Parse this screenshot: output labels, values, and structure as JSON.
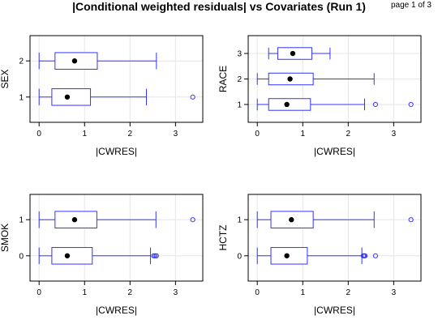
{
  "title": "|Conditional weighted residuals| vs Covariates (Run 1)",
  "page_label": "page 1 of 3",
  "colors": {
    "box": "#3333ff",
    "median_dot": "#000000",
    "grid": "#e6e6e6",
    "frame": "#000000"
  },
  "chart_data": [
    {
      "type": "boxplot",
      "orientation": "horizontal",
      "ylabel": "SEX",
      "xlabel": "|CWRES|",
      "xlim": [
        -0.2,
        3.6
      ],
      "xticks": [
        0,
        1,
        2,
        3
      ],
      "grid": true,
      "groups": [
        {
          "label": "1",
          "whisker_low": 0.0,
          "q1": 0.28,
          "median": 0.62,
          "q3": 1.13,
          "whisker_high": 2.36,
          "outliers": [
            3.38
          ]
        },
        {
          "label": "2",
          "whisker_low": 0.0,
          "q1": 0.35,
          "median": 0.78,
          "q3": 1.28,
          "whisker_high": 2.58,
          "outliers": []
        }
      ]
    },
    {
      "type": "boxplot",
      "orientation": "horizontal",
      "ylabel": "RACE",
      "xlabel": "|CWRES|",
      "xlim": [
        -0.2,
        3.6
      ],
      "xticks": [
        0,
        1,
        2,
        3
      ],
      "grid": true,
      "groups": [
        {
          "label": "1",
          "whisker_low": 0.0,
          "q1": 0.25,
          "median": 0.65,
          "q3": 1.17,
          "whisker_high": 2.36,
          "outliers": [
            2.6,
            3.38
          ]
        },
        {
          "label": "2",
          "whisker_low": 0.0,
          "q1": 0.25,
          "median": 0.72,
          "q3": 1.23,
          "whisker_high": 2.57,
          "outliers": []
        },
        {
          "label": "3",
          "whisker_low": 0.25,
          "q1": 0.45,
          "median": 0.78,
          "q3": 1.2,
          "whisker_high": 1.6,
          "outliers": []
        }
      ]
    },
    {
      "type": "boxplot",
      "orientation": "horizontal",
      "ylabel": "SMOK",
      "xlabel": "|CWRES|",
      "xlim": [
        -0.2,
        3.6
      ],
      "xticks": [
        0,
        1,
        2,
        3
      ],
      "grid": true,
      "groups": [
        {
          "label": "0",
          "whisker_low": 0.0,
          "q1": 0.28,
          "median": 0.62,
          "q3": 1.17,
          "whisker_high": 2.45,
          "outliers": [
            2.52,
            2.55,
            2.58
          ]
        },
        {
          "label": "1",
          "whisker_low": 0.0,
          "q1": 0.35,
          "median": 0.78,
          "q3": 1.27,
          "whisker_high": 2.57,
          "outliers": [
            3.38
          ]
        }
      ]
    },
    {
      "type": "boxplot",
      "orientation": "horizontal",
      "ylabel": "HCTZ",
      "xlabel": "|CWRES|",
      "xlim": [
        -0.2,
        3.6
      ],
      "xticks": [
        0,
        1,
        2,
        3
      ],
      "grid": true,
      "groups": [
        {
          "label": "0",
          "whisker_low": 0.0,
          "q1": 0.3,
          "median": 0.65,
          "q3": 1.1,
          "whisker_high": 2.3,
          "outliers": [
            2.33,
            2.35,
            2.37,
            2.6
          ]
        },
        {
          "label": "1",
          "whisker_low": 0.0,
          "q1": 0.3,
          "median": 0.75,
          "q3": 1.23,
          "whisker_high": 2.57,
          "outliers": [
            3.38
          ]
        }
      ]
    }
  ]
}
